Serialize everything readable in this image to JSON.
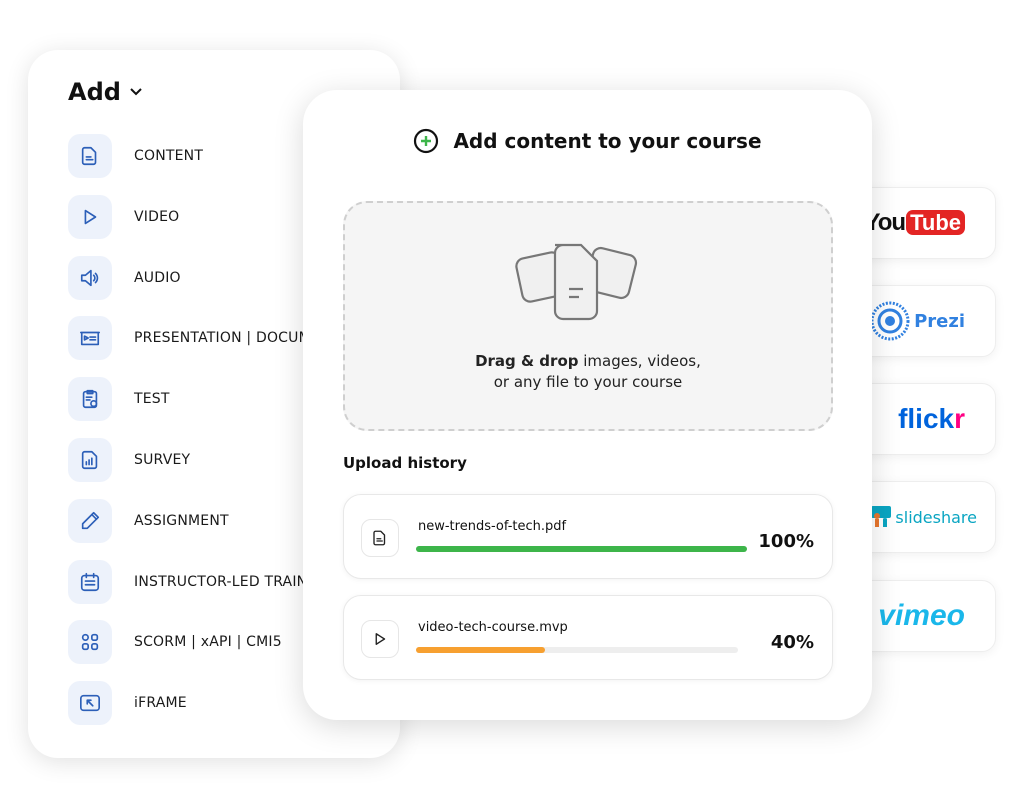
{
  "add_menu": {
    "title": "Add",
    "items": [
      {
        "label": "CONTENT",
        "icon": "document-icon"
      },
      {
        "label": "VIDEO",
        "icon": "play-icon"
      },
      {
        "label": "AUDIO",
        "icon": "speaker-icon"
      },
      {
        "label": "PRESENTATION | DOCUMENT",
        "icon": "presentation-icon"
      },
      {
        "label": "TEST",
        "icon": "clipboard-check-icon"
      },
      {
        "label": "SURVEY",
        "icon": "survey-chart-icon"
      },
      {
        "label": "ASSIGNMENT",
        "icon": "pencil-icon"
      },
      {
        "label": "INSTRUCTOR-LED TRAINING",
        "icon": "calendar-icon"
      },
      {
        "label": "SCORM | xAPI | CMI5",
        "icon": "grid-icon"
      },
      {
        "label": "iFRAME",
        "icon": "iframe-icon"
      }
    ]
  },
  "integrations": [
    "YouTube",
    "Prezi",
    "flickr",
    "slideshare",
    "vimeo"
  ],
  "dialog": {
    "title": "Add content to your course",
    "drop_bold": "Drag & drop",
    "drop_rest": " images, videos,",
    "drop_line2": "or any file to your course",
    "history_label": "Upload history",
    "uploads": [
      {
        "name": "new-trends-of-tech.pdf",
        "progress": 100,
        "progress_label": "100%",
        "color": "#3db54a",
        "icon": "document-icon"
      },
      {
        "name": "video-tech-course.mvp",
        "progress": 40,
        "progress_label": "40%",
        "color": "#f7a030",
        "icon": "play-icon"
      }
    ]
  },
  "colors": {
    "accent": "#2c5fb8",
    "icon_bg": "#edf2fb",
    "plus": "#3db54a"
  }
}
